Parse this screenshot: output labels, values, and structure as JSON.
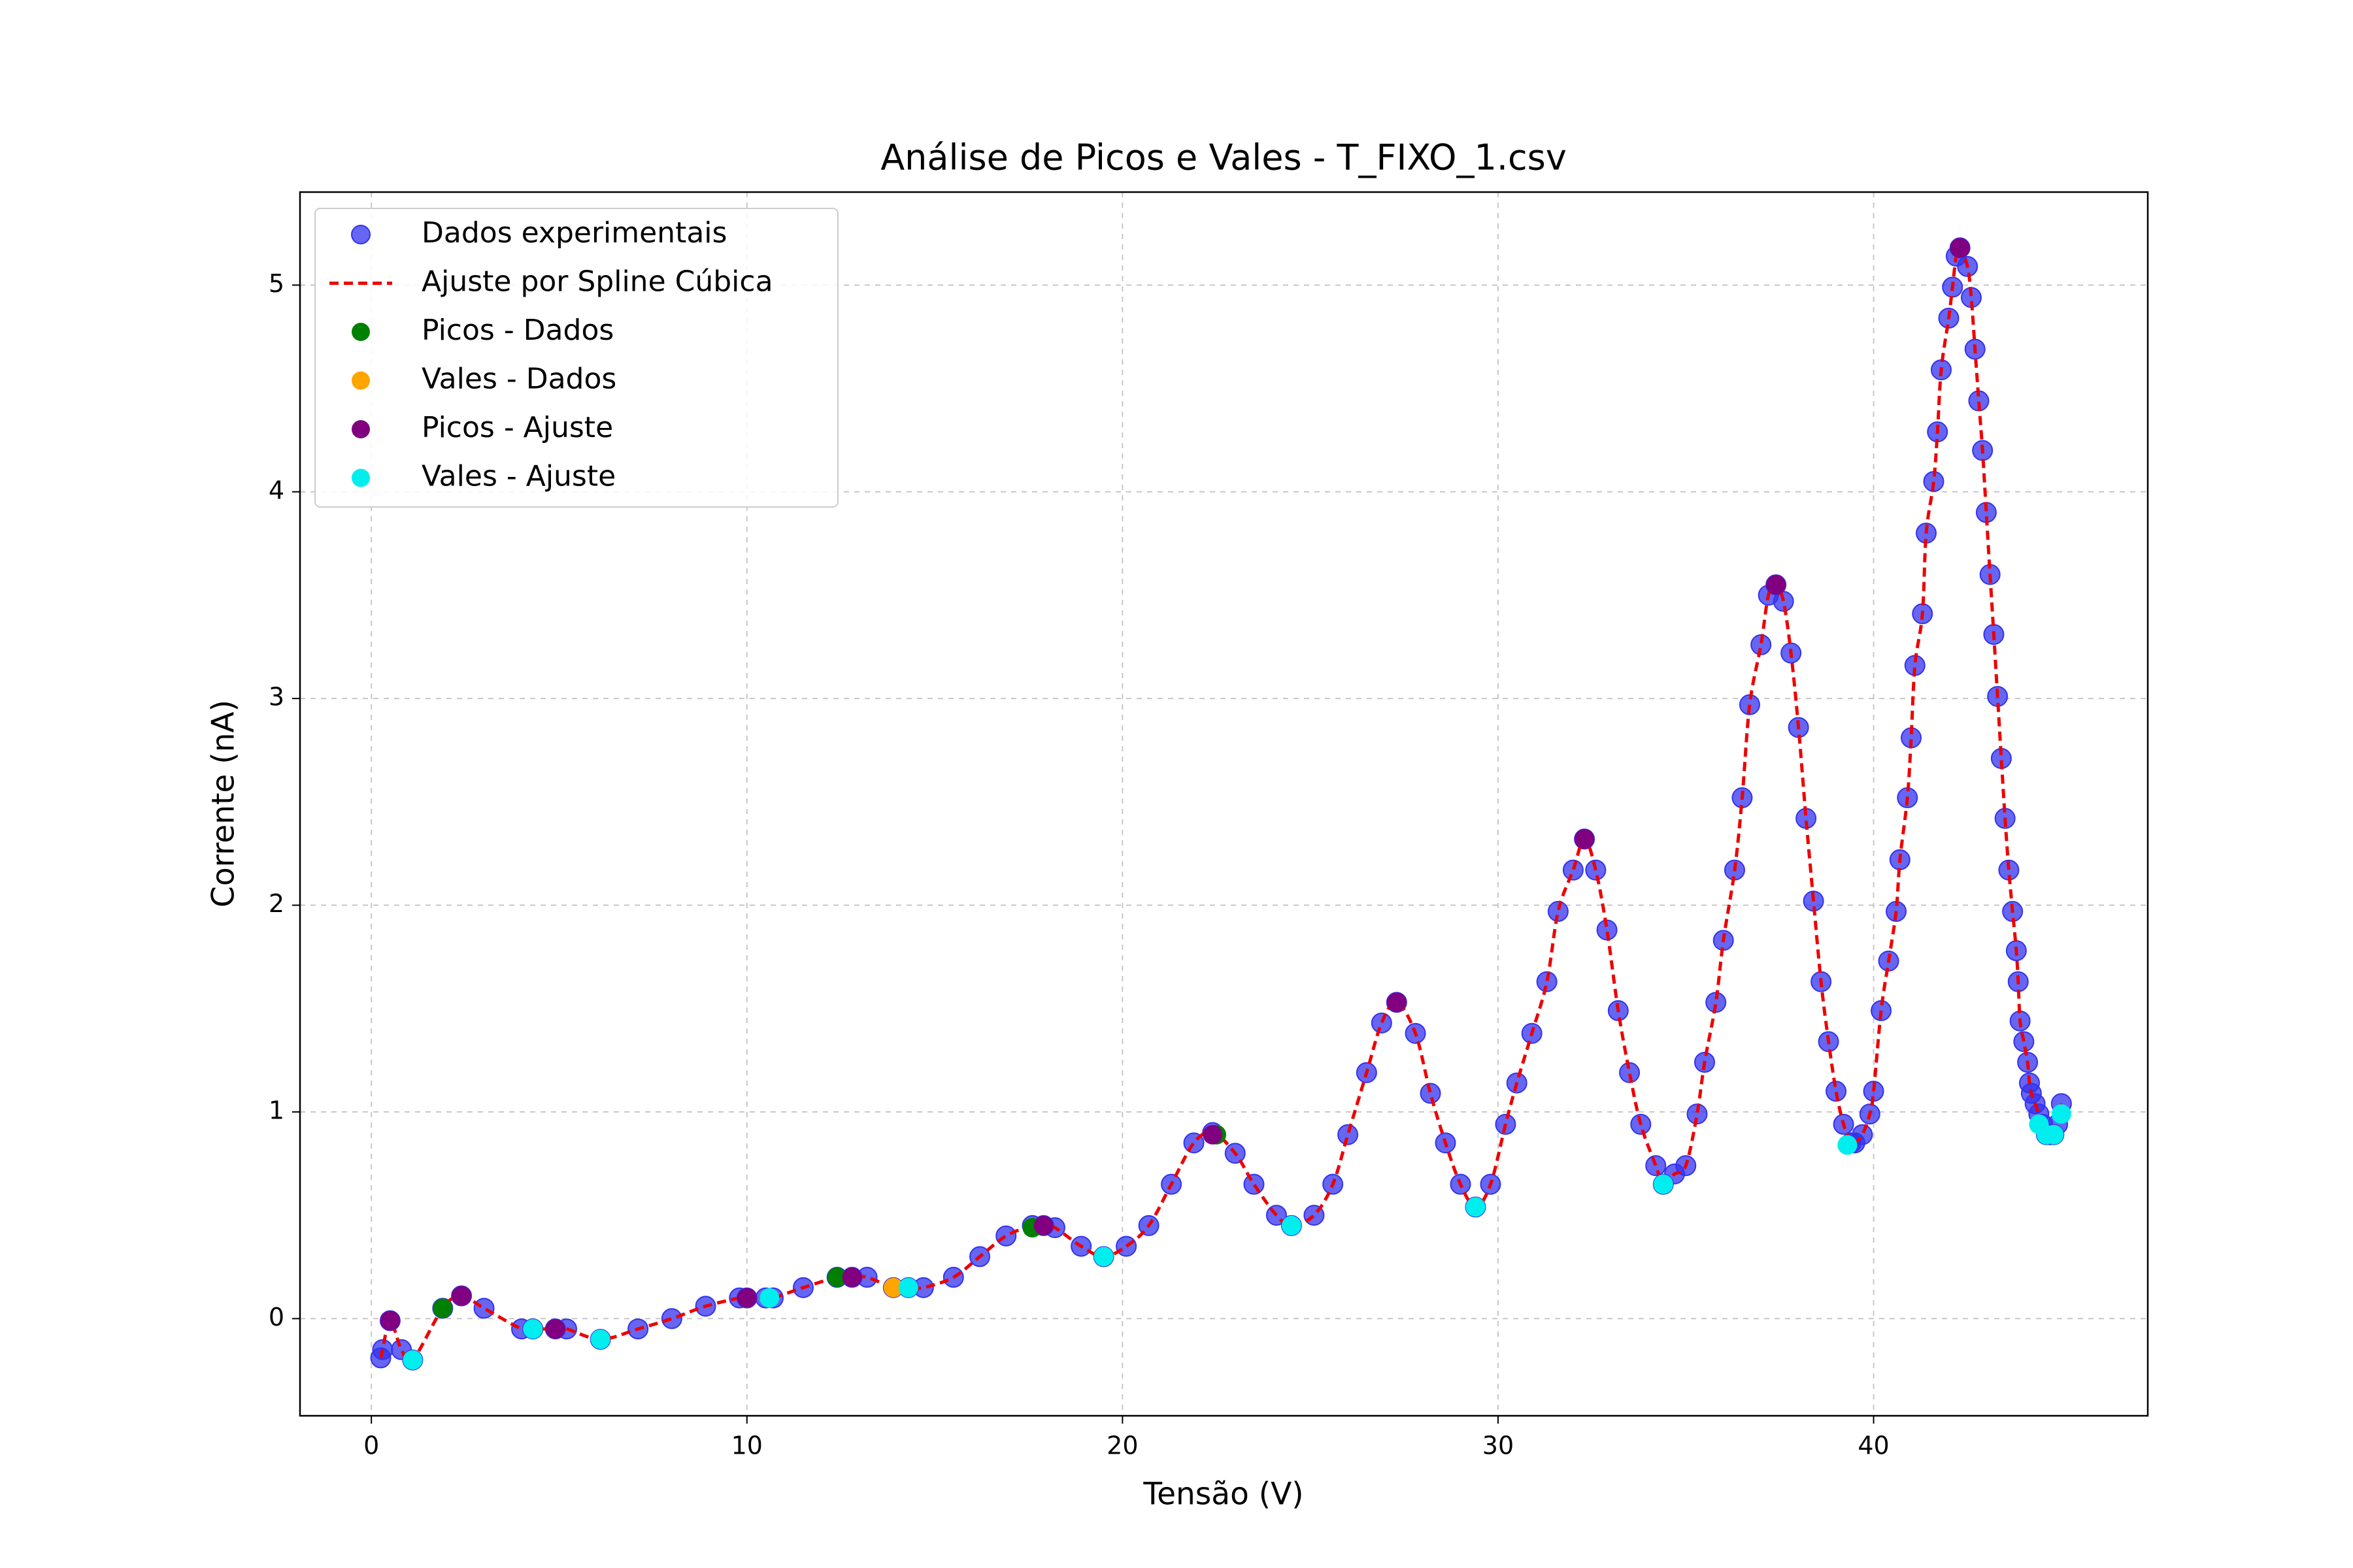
{
  "chart_data": {
    "type": "scatter",
    "title": "Análise de Picos e Vales - T_FIXO_1.csv",
    "x_label": "Tensão (V)",
    "y_label": "Corrente (nA)",
    "xlim": [
      -1.9,
      47.3
    ],
    "ylim": [
      -0.47,
      5.45
    ],
    "xticks": [
      0,
      10,
      20,
      30,
      40
    ],
    "yticks": [
      0,
      1,
      2,
      3,
      4,
      5
    ],
    "grid": true,
    "legend": "upper left",
    "series": [
      {
        "name": "Dados experimentais",
        "style": "points",
        "color": "#3333ee",
        "x": [
          0.25,
          0.3,
          0.5,
          0.8,
          1.1,
          1.9,
          2.4,
          3.0,
          4.0,
          4.3,
          4.9,
          5.2,
          6.1,
          7.1,
          8.0,
          8.9,
          9.8,
          10.0,
          10.5,
          10.7,
          11.5,
          12.4,
          12.8,
          13.2,
          13.9,
          14.3,
          14.7,
          15.5,
          16.2,
          16.9,
          17.6,
          17.9,
          18.2,
          18.9,
          19.5,
          20.1,
          20.7,
          21.3,
          21.9,
          22.4,
          23.0,
          23.5,
          24.1,
          24.5,
          25.1,
          25.6,
          26.0,
          26.5,
          26.9,
          27.3,
          27.8,
          28.2,
          28.6,
          29.0,
          29.4,
          29.8,
          30.2,
          30.5,
          30.9,
          31.3,
          31.6,
          32.0,
          32.3,
          32.6,
          32.9,
          33.2,
          33.5,
          33.8,
          34.2,
          34.4,
          34.7,
          35.0,
          35.3,
          35.5,
          35.8,
          36.0,
          36.3,
          36.5,
          36.7,
          37.0,
          37.2,
          37.4,
          37.6,
          37.8,
          38.0,
          38.2,
          38.4,
          38.6,
          38.8,
          39.0,
          39.2,
          39.4,
          39.5,
          39.7,
          39.9,
          40.0,
          40.2,
          40.4,
          40.6,
          40.7,
          40.9,
          41.0,
          41.1,
          41.3,
          41.4,
          41.6,
          41.7,
          41.8,
          42.0,
          42.1,
          42.2,
          42.3,
          42.5,
          42.6,
          42.7,
          42.8,
          42.9,
          43.0,
          43.1,
          43.2,
          43.3,
          43.4,
          43.5,
          43.6,
          43.7,
          43.8,
          43.85,
          43.9,
          44.0,
          44.1,
          44.15,
          44.2,
          44.3,
          44.4,
          44.5,
          44.6,
          44.7,
          44.8,
          44.9,
          45.0
        ],
        "values": [
          -0.19,
          -0.15,
          -0.01,
          -0.15,
          -0.2,
          0.05,
          0.11,
          0.05,
          -0.05,
          -0.05,
          -0.05,
          -0.05,
          -0.1,
          -0.05,
          0.0,
          0.06,
          0.1,
          0.1,
          0.1,
          0.1,
          0.15,
          0.2,
          0.2,
          0.2,
          0.15,
          0.15,
          0.15,
          0.2,
          0.3,
          0.4,
          0.45,
          0.45,
          0.44,
          0.35,
          0.3,
          0.35,
          0.45,
          0.65,
          0.85,
          0.9,
          0.8,
          0.65,
          0.5,
          0.45,
          0.5,
          0.65,
          0.89,
          1.19,
          1.43,
          1.53,
          1.38,
          1.09,
          0.85,
          0.65,
          0.54,
          0.65,
          0.94,
          1.14,
          1.38,
          1.63,
          1.97,
          2.17,
          2.32,
          2.17,
          1.88,
          1.49,
          1.19,
          0.94,
          0.74,
          0.65,
          0.7,
          0.74,
          0.99,
          1.24,
          1.53,
          1.83,
          2.17,
          2.52,
          2.97,
          3.26,
          3.5,
          3.55,
          3.47,
          3.22,
          2.86,
          2.42,
          2.02,
          1.63,
          1.34,
          1.1,
          0.94,
          0.85,
          0.85,
          0.89,
          0.99,
          1.1,
          1.49,
          1.73,
          1.97,
          2.22,
          2.52,
          2.81,
          3.16,
          3.41,
          3.8,
          4.05,
          4.29,
          4.59,
          4.84,
          4.99,
          5.14,
          5.18,
          5.09,
          4.94,
          4.69,
          4.44,
          4.2,
          3.9,
          3.6,
          3.31,
          3.01,
          2.71,
          2.42,
          2.17,
          1.97,
          1.78,
          1.63,
          1.44,
          1.34,
          1.24,
          1.14,
          1.09,
          1.04,
          0.99,
          0.94,
          0.89,
          0.89,
          0.89,
          0.94,
          1.04
        ]
      },
      {
        "name": "Ajuste por Spline Cúbica",
        "style": "dashed-line",
        "color": "#ee0000"
      },
      {
        "name": "Picos - Dados",
        "style": "points",
        "color": "#008000",
        "x": [
          1.9,
          12.4,
          17.6,
          22.5
        ],
        "values": [
          0.05,
          0.2,
          0.44,
          0.89
        ]
      },
      {
        "name": "Vales - Dados",
        "style": "points",
        "color": "#ffa500",
        "x": [
          13.9,
          39.3
        ],
        "values": [
          0.15,
          0.84
        ]
      },
      {
        "name": "Picos - Ajuste",
        "style": "points",
        "color": "#800080",
        "x": [
          0.5,
          2.4,
          4.9,
          10.0,
          12.8,
          17.9,
          22.4,
          27.3,
          32.3,
          37.4,
          42.3
        ],
        "values": [
          -0.01,
          0.11,
          -0.05,
          0.1,
          0.2,
          0.45,
          0.89,
          1.53,
          2.32,
          3.55,
          5.18
        ]
      },
      {
        "name": "Vales - Ajuste",
        "style": "points",
        "color": "#00eeee",
        "x": [
          1.1,
          4.3,
          6.1,
          10.6,
          14.3,
          19.5,
          24.5,
          29.4,
          34.4,
          39.3,
          44.4,
          44.6,
          44.8,
          45.0
        ],
        "values": [
          -0.2,
          -0.05,
          -0.1,
          0.1,
          0.15,
          0.3,
          0.45,
          0.54,
          0.65,
          0.84,
          0.94,
          0.89,
          0.89,
          0.99
        ]
      }
    ]
  }
}
